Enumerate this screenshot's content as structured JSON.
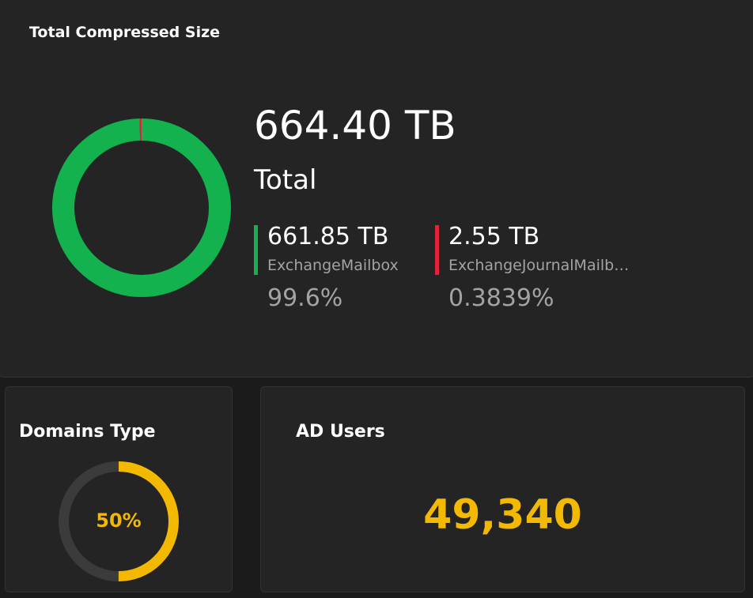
{
  "compressed": {
    "title": "Total Compressed Size",
    "total": "664.40 TB",
    "total_label": "Total",
    "items": [
      {
        "size": "661.85 TB",
        "name": "ExchangeMailbox",
        "percent": "99.6%",
        "share": 99.6,
        "color": "#13b24f"
      },
      {
        "size": "2.55 TB",
        "name": "ExchangeJournalMailb…",
        "percent": "0.3839%",
        "share": 0.3839,
        "color": "#e8213b"
      }
    ]
  },
  "domains": {
    "title": "Domains Type",
    "percent_label": "50%",
    "value": 50,
    "color": "#f3b800",
    "track": "#3b3b3b"
  },
  "ad_users": {
    "title": "AD Users",
    "count": "49,340"
  }
}
